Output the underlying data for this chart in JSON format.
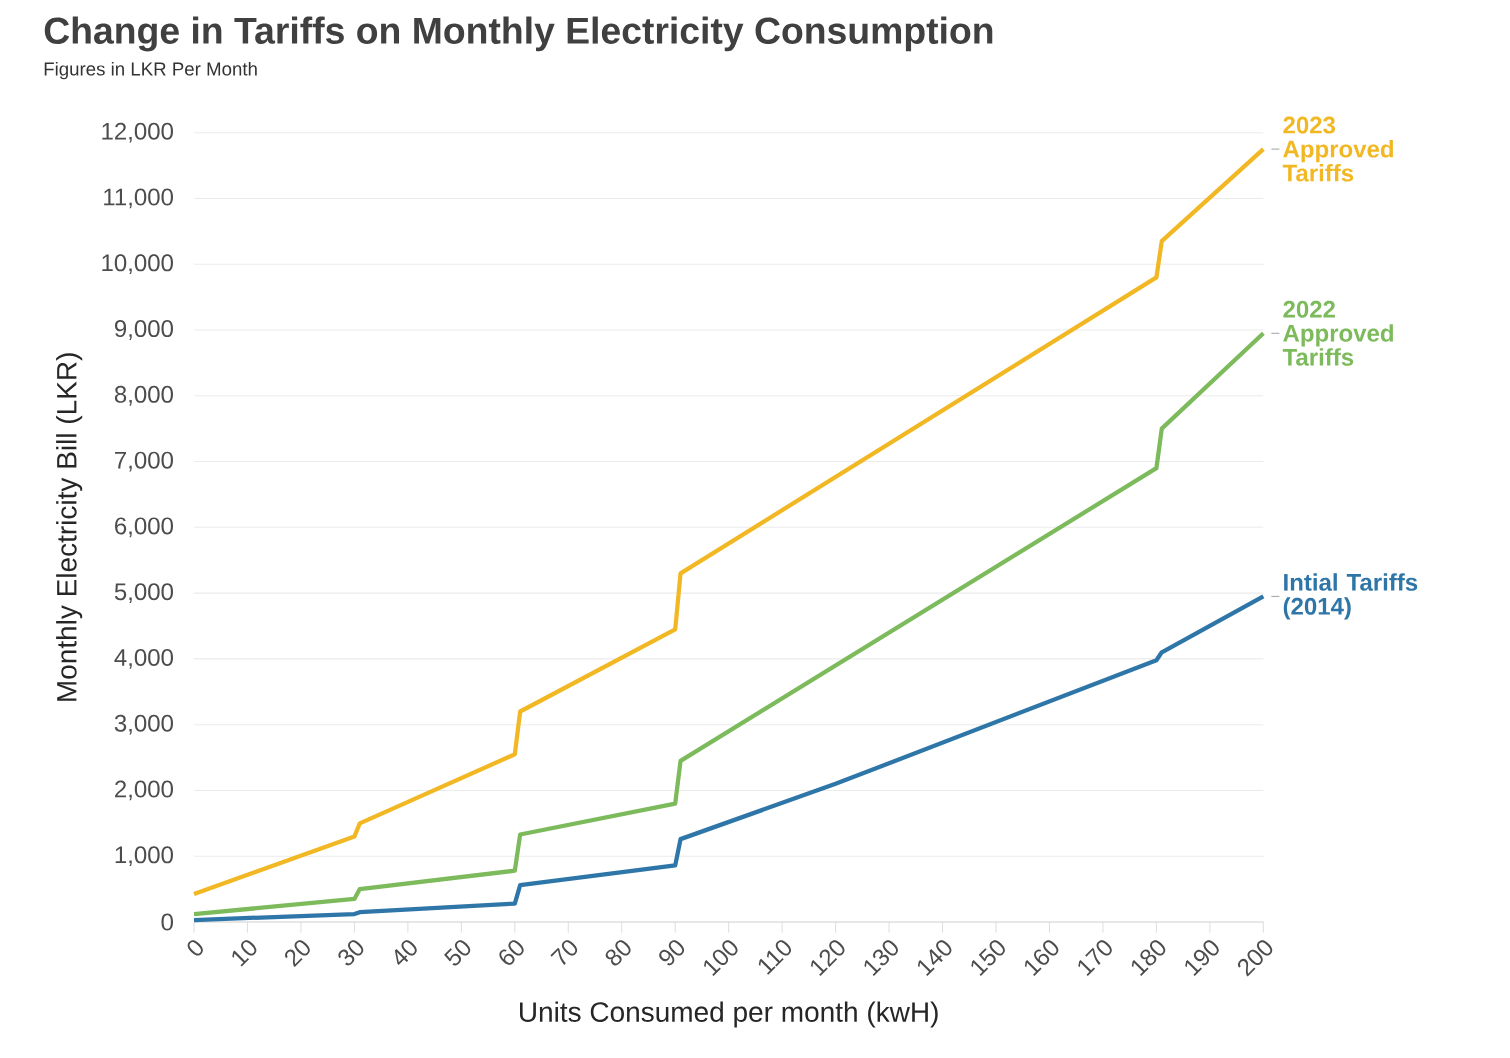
{
  "chart_data": {
    "type": "line",
    "title": "Change in Tariffs on Monthly Electricity Consumption",
    "subtitle": "Figures in LKR Per Month",
    "xlabel": "Units Consumed per month (kwH)",
    "ylabel": "Monthly Electricity Bill (LKR)",
    "xlim": [
      0,
      200
    ],
    "xticks": [
      0,
      10,
      20,
      30,
      40,
      50,
      60,
      70,
      80,
      90,
      100,
      110,
      120,
      130,
      140,
      150,
      160,
      170,
      180,
      190,
      200
    ],
    "ylim": [
      0,
      12000
    ],
    "yticks": [
      {
        "value": 0,
        "label": "0"
      },
      {
        "value": 1000,
        "label": "1,000"
      },
      {
        "value": 2000,
        "label": "2,000"
      },
      {
        "value": 3000,
        "label": "3,000"
      },
      {
        "value": 4000,
        "label": "4,000"
      },
      {
        "value": 5000,
        "label": "5,000"
      },
      {
        "value": 6000,
        "label": "6,000"
      },
      {
        "value": 7000,
        "label": "7,000"
      },
      {
        "value": 8000,
        "label": "8,000"
      },
      {
        "value": 9000,
        "label": "9,000"
      },
      {
        "value": 10000,
        "label": "10,000"
      },
      {
        "value": 11000,
        "label": "11,000"
      },
      {
        "value": 12000,
        "label": "12,000"
      }
    ],
    "grid": "y",
    "legend": false,
    "marker": "none",
    "line_style": "solid",
    "series": [
      {
        "name": "2023 Approved Tariffs",
        "color": "#f2b824",
        "x": [
          0,
          30,
          31,
          60,
          61,
          90,
          91,
          180,
          181,
          200
        ],
        "values": [
          425,
          1300,
          1500,
          2550,
          3200,
          4450,
          5300,
          9800,
          10350,
          11750
        ]
      },
      {
        "name": "2022 Approved Tariffs",
        "color": "#7cba5c",
        "x": [
          0,
          30,
          31,
          60,
          61,
          90,
          91,
          180,
          181,
          200
        ],
        "values": [
          120,
          350,
          500,
          780,
          1330,
          1800,
          2450,
          6900,
          7500,
          8950
        ]
      },
      {
        "name": "Intial Tariffs (2014)",
        "color": "#2f76a8",
        "x": [
          0,
          30,
          31,
          60,
          61,
          90,
          91,
          120,
          180,
          181,
          200
        ],
        "values": [
          30,
          120,
          150,
          280,
          560,
          860,
          1260,
          2100,
          3980,
          4100,
          4950
        ]
      }
    ]
  }
}
